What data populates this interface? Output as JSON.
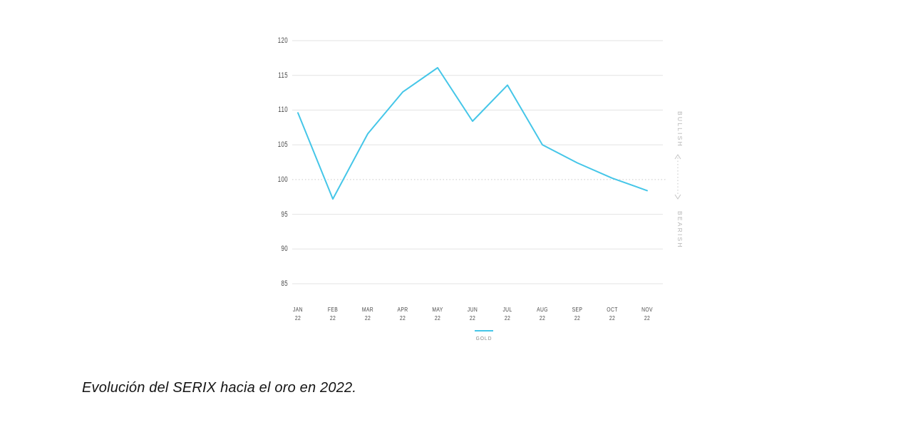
{
  "caption": "Evolución del SERIX hacia el oro en 2022.",
  "sentiment": {
    "top_label": "BULLISH",
    "bottom_label": "BEARISH"
  },
  "legend": {
    "label": "GOLD"
  },
  "colors": {
    "line": "#45c6e8",
    "grid": "#e3e3e3",
    "baseline_dotted": "#c9c9c9",
    "tick_text": "#4a4a4a",
    "sentiment_text": "#b5b5b5",
    "arrow": "#c4c4c4"
  },
  "chart_data": {
    "type": "line",
    "title": "",
    "xlabel": "",
    "ylabel": "",
    "x_ticks": [
      {
        "month": "JAN",
        "year": "22"
      },
      {
        "month": "FEB",
        "year": "22"
      },
      {
        "month": "MAR",
        "year": "22"
      },
      {
        "month": "APR",
        "year": "22"
      },
      {
        "month": "MAY",
        "year": "22"
      },
      {
        "month": "JUN",
        "year": "22"
      },
      {
        "month": "JUL",
        "year": "22"
      },
      {
        "month": "AUG",
        "year": "22"
      },
      {
        "month": "SEP",
        "year": "22"
      },
      {
        "month": "OCT",
        "year": "22"
      },
      {
        "month": "NOV",
        "year": "22"
      }
    ],
    "series": [
      {
        "name": "GOLD",
        "values": [
          109.6,
          97.2,
          106.6,
          112.6,
          116.1,
          108.4,
          113.6,
          105.0,
          102.4,
          100.2,
          98.4
        ]
      }
    ],
    "ylim": [
      85,
      120
    ],
    "yticks": [
      120,
      115,
      110,
      105,
      100,
      95,
      90,
      85
    ],
    "baseline": 100,
    "grid": true,
    "legend_position": "bottom"
  }
}
